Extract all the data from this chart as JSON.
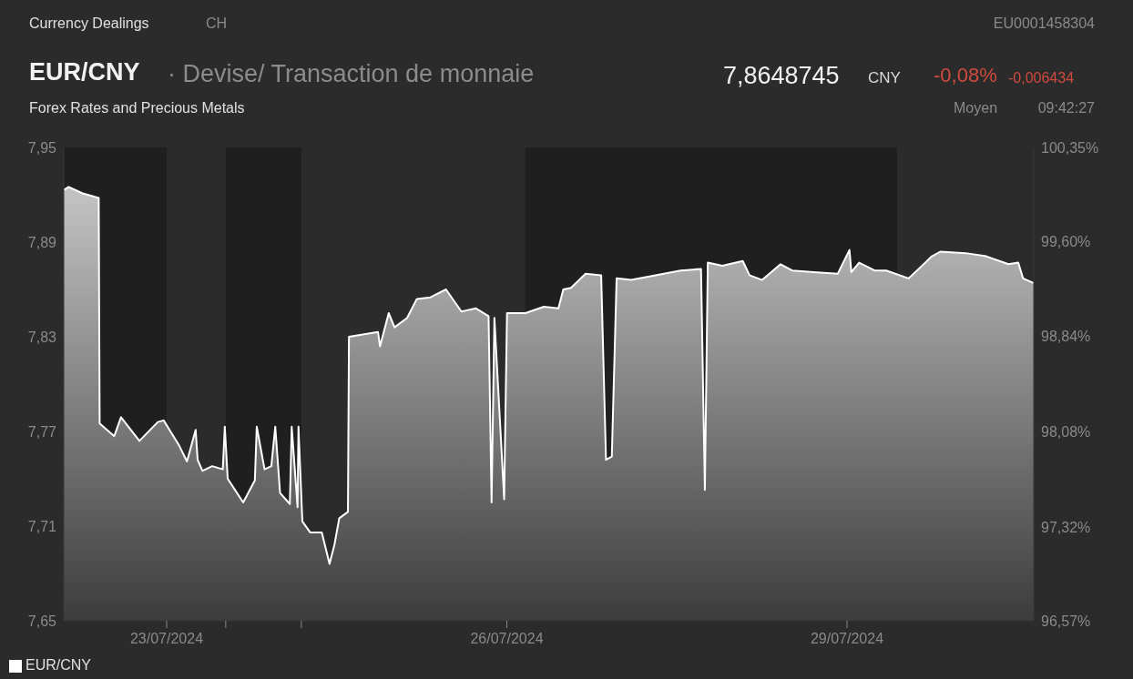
{
  "chart_data": {
    "type": "area",
    "title": "EUR/CNY",
    "subtitle": "· Devise/ Transaction de monnaie",
    "annotations": [
      "Currency Dealings",
      "CH",
      "EU0001458304",
      "7,8648745",
      "CNY",
      "-0,08%",
      "-0,006434",
      "Forex Rates and Precious Metals",
      "Moyen",
      "09:42:27"
    ],
    "x": [
      "2024-07-22T02:13",
      "2024-07-22T03:15",
      "2024-07-22T06:07",
      "2024-07-22T09:37",
      "2024-07-22T09:49",
      "2024-07-22T12:54",
      "2024-07-22T14:20",
      "2024-07-22T18:14",
      "2024-07-22T22:08",
      "2024-07-22T23:22",
      "2024-07-23T00:48",
      "2024-07-23T02:39",
      "2024-07-23T04:18",
      "2024-07-23T06:08",
      "2024-07-23T06:33",
      "2024-07-23T07:35",
      "2024-07-23T09:38",
      "2024-07-23T11:53",
      "2024-07-23T12:18",
      "2024-07-23T12:55",
      "2024-07-23T16:12",
      "2024-07-23T18:40",
      "2024-07-23T19:04",
      "2024-07-23T20:43",
      "2024-07-23T22:09",
      "2024-07-23T22:59",
      "2024-07-24T00:00",
      "2024-07-24T02:04",
      "2024-07-24T02:28",
      "2024-07-24T03:42",
      "2024-07-24T03:54",
      "2024-07-24T04:43",
      "2024-07-24T06:22",
      "2024-07-24T08:50",
      "2024-07-24T10:28",
      "2024-07-24T11:30",
      "2024-07-24T12:32",
      "2024-07-24T14:22",
      "2024-07-24T14:35",
      "2024-07-24T20:44",
      "2024-07-24T21:09",
      "2024-07-24T23:00",
      "2024-07-25T00:14",
      "2024-07-25T02:54",
      "2024-07-25T04:57",
      "2024-07-25T07:49",
      "2024-07-25T11:07",
      "2024-07-25T14:23",
      "2024-07-25T17:28",
      "2024-07-25T20:08",
      "2024-07-25T20:46",
      "2024-07-25T21:22",
      "2024-07-25T23:26",
      "2024-07-26T00:02",
      "2024-07-26T03:56",
      "2024-07-26T07:50",
      "2024-07-26T10:55",
      "2024-07-26T11:57",
      "2024-07-26T13:35",
      "2024-07-26T16:40",
      "2024-07-26T19:58",
      "2024-07-26T20:59",
      "2024-07-26T22:13",
      "2024-07-26T23:14",
      "2024-07-27T02:19",
      "2024-07-27T07:27",
      "2024-07-27T12:47",
      "2024-07-27T17:06",
      "2024-07-27T17:55",
      "2024-07-27T18:32",
      "2024-07-27T21:37",
      "2024-07-28T01:56",
      "2024-07-28T03:22",
      "2024-07-28T06:02",
      "2024-07-28T09:56",
      "2024-07-28T12:24",
      "2024-07-28T16:55",
      "2024-07-28T22:03",
      "2024-07-29T00:31",
      "2024-07-29T00:55",
      "2024-07-29T02:34",
      "2024-07-29T05:51",
      "2024-07-29T08:19",
      "2024-07-29T13:02",
      "2024-07-29T17:58",
      "2024-07-29T19:49",
      "2024-07-30T01:09",
      "2024-07-30T05:28",
      "2024-07-30T10:11",
      "2024-07-30T12:14",
      "2024-07-30T13:16",
      "2024-07-30T15:31"
    ],
    "series": [
      {
        "name": "EUR/CNY",
        "color": "#ffffff",
        "values": [
          7.923,
          7.925,
          7.921,
          7.918,
          7.775,
          7.767,
          7.779,
          7.764,
          7.776,
          7.777,
          7.77,
          7.761,
          7.751,
          7.771,
          7.752,
          7.745,
          7.748,
          7.746,
          7.773,
          7.74,
          7.725,
          7.739,
          7.773,
          7.746,
          7.748,
          7.773,
          7.731,
          7.724,
          7.773,
          7.722,
          7.773,
          7.713,
          7.706,
          7.706,
          7.686,
          7.698,
          7.715,
          7.719,
          7.83,
          7.833,
          7.824,
          7.845,
          7.836,
          7.842,
          7.854,
          7.855,
          7.86,
          7.846,
          7.848,
          7.843,
          7.725,
          7.842,
          7.727,
          7.845,
          7.845,
          7.849,
          7.848,
          7.86,
          7.861,
          7.87,
          7.869,
          7.752,
          7.754,
          7.867,
          7.866,
          7.869,
          7.872,
          7.873,
          7.733,
          7.877,
          7.875,
          7.878,
          7.869,
          7.866,
          7.876,
          7.872,
          7.871,
          7.87,
          7.885,
          7.871,
          7.877,
          7.872,
          7.872,
          7.867,
          7.881,
          7.884,
          7.883,
          7.881,
          7.876,
          7.877,
          7.867,
          7.864
        ]
      }
    ],
    "xlim": [
      "2024-07-22T02:13",
      "2024-07-30T15:31"
    ],
    "xticks": [
      {
        "value": "2024-07-23",
        "label": "23/07/2024"
      },
      {
        "value": "2024-07-23T12:30",
        "label": null
      },
      {
        "value": "2024-07-24T04:30",
        "label": null
      },
      {
        "value": "2024-07-26",
        "label": "26/07/2024"
      },
      {
        "value": "2024-07-29",
        "label": "29/07/2024"
      }
    ],
    "ylim": [
      7.65,
      7.95
    ],
    "yticks": [
      {
        "value": 7.65,
        "label": "7,65"
      },
      {
        "value": 7.71,
        "label": "7,71"
      },
      {
        "value": 7.77,
        "label": "7,77"
      },
      {
        "value": 7.83,
        "label": "7,83"
      },
      {
        "value": 7.89,
        "label": "7,89"
      },
      {
        "value": 7.95,
        "label": "7,95"
      }
    ],
    "y2lim": [
      96.57,
      100.35
    ],
    "y2ticks": [
      {
        "value": 96.57,
        "label": "96,57%"
      },
      {
        "value": 97.32,
        "label": "97,32%"
      },
      {
        "value": 98.08,
        "label": "98,08%"
      },
      {
        "value": 98.84,
        "label": "98,84%"
      },
      {
        "value": 99.6,
        "label": "99,60%"
      },
      {
        "value": 100.35,
        "label": "100,35%"
      }
    ],
    "bands": [
      {
        "axis": "x",
        "from": "2024-07-22T02:13",
        "to": "2024-07-23",
        "color": "#1f1f1f"
      },
      {
        "axis": "x",
        "from": "2024-07-23T12:30",
        "to": "2024-07-24T04:30",
        "color": "#1f1f1f"
      },
      {
        "axis": "x",
        "from": "2024-07-26T03:56",
        "to": "2024-07-29T10:34",
        "color": "#1f1f1f"
      }
    ],
    "grid": false,
    "legend": "bottom left",
    "marker": "none",
    "line_style": "solid"
  }
}
